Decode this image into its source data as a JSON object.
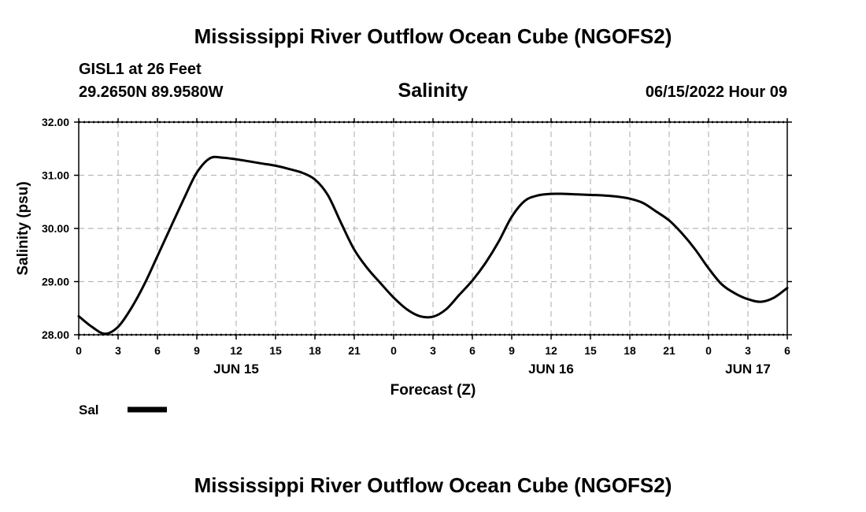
{
  "page": {
    "title_top": "Mississippi River Outflow Ocean Cube (NGOFS2)",
    "title_bottom": "Mississippi River Outflow Ocean Cube (NGOFS2)",
    "station_line1": "GISL1 at 26 Feet",
    "station_line2": "29.2650N  89.9580W",
    "datetime": "06/15/2022 Hour 09"
  },
  "chart_data": {
    "type": "line",
    "title": "Salinity",
    "xlabel": "Forecast (Z)",
    "ylabel": "Salinity (psu)",
    "x_unit": "hours from 2022-06-15 00Z",
    "xlim": [
      0,
      54
    ],
    "ylim": [
      28.0,
      32.0
    ],
    "yticks": [
      "28.00",
      "29.00",
      "30.00",
      "31.00",
      "32.00"
    ],
    "xtick_labels": [
      "0",
      "3",
      "6",
      "9",
      "12",
      "15",
      "18",
      "21",
      "0",
      "3",
      "6",
      "9",
      "12",
      "15",
      "18",
      "21",
      "0",
      "3",
      "6"
    ],
    "date_labels": [
      {
        "label": "JUN 15",
        "x": 12
      },
      {
        "label": "JUN 16",
        "x": 36
      },
      {
        "label": "JUN 17",
        "x": 51
      }
    ],
    "grid": true,
    "legend": {
      "label": "Sal",
      "color": "#000000",
      "placement": "bottom-left"
    },
    "series": [
      {
        "name": "Sal",
        "color": "#000000",
        "x": [
          0,
          1,
          2,
          3,
          4,
          5,
          6,
          7,
          8,
          9,
          10,
          11,
          12,
          13,
          14,
          15,
          16,
          17,
          18,
          19,
          20,
          21,
          22,
          23,
          24,
          25,
          26,
          27,
          28,
          29,
          30,
          31,
          32,
          33,
          34,
          35,
          36,
          37,
          38,
          39,
          40,
          41,
          42,
          43,
          44,
          45,
          46,
          47,
          48,
          49,
          50,
          51,
          52,
          53,
          54
        ],
        "values": [
          28.35,
          28.15,
          28.02,
          28.15,
          28.5,
          28.95,
          29.48,
          30.02,
          30.55,
          31.05,
          31.32,
          31.33,
          31.3,
          31.26,
          31.22,
          31.18,
          31.12,
          31.05,
          30.92,
          30.62,
          30.1,
          29.6,
          29.25,
          28.97,
          28.7,
          28.48,
          28.35,
          28.34,
          28.48,
          28.75,
          29.02,
          29.35,
          29.75,
          30.22,
          30.52,
          30.62,
          30.65,
          30.65,
          30.64,
          30.63,
          30.62,
          30.6,
          30.56,
          30.48,
          30.32,
          30.15,
          29.9,
          29.6,
          29.25,
          28.95,
          28.78,
          28.67,
          28.62,
          28.7,
          28.88
        ]
      }
    ]
  }
}
